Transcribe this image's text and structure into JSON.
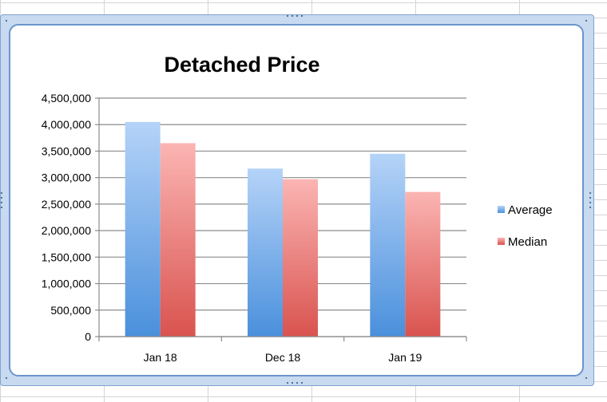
{
  "chart_data": {
    "type": "bar",
    "title": "Detached Price",
    "categories": [
      "Jan 18",
      "Dec 18",
      "Jan 19"
    ],
    "series": [
      {
        "name": "Average",
        "values": [
          4050000,
          3170000,
          3450000
        ]
      },
      {
        "name": "Median",
        "values": [
          3650000,
          2970000,
          2730000
        ]
      }
    ],
    "ylim": [
      0,
      4500000
    ],
    "yticks": [
      0,
      500000,
      1000000,
      1500000,
      2000000,
      2500000,
      3000000,
      3500000,
      4000000,
      4500000
    ],
    "ytick_labels": [
      "0",
      "500,000",
      "1,000,000",
      "1,500,000",
      "2,000,000",
      "2,500,000",
      "3,000,000",
      "3,500,000",
      "4,000,000",
      "4,500,000"
    ],
    "grid": true,
    "legend_position": "right",
    "colors": {
      "Average": {
        "light": "#b5d3f8",
        "dark": "#4a90dc"
      },
      "Median": {
        "light": "#fbb5b3",
        "dark": "#d9534f"
      }
    }
  }
}
